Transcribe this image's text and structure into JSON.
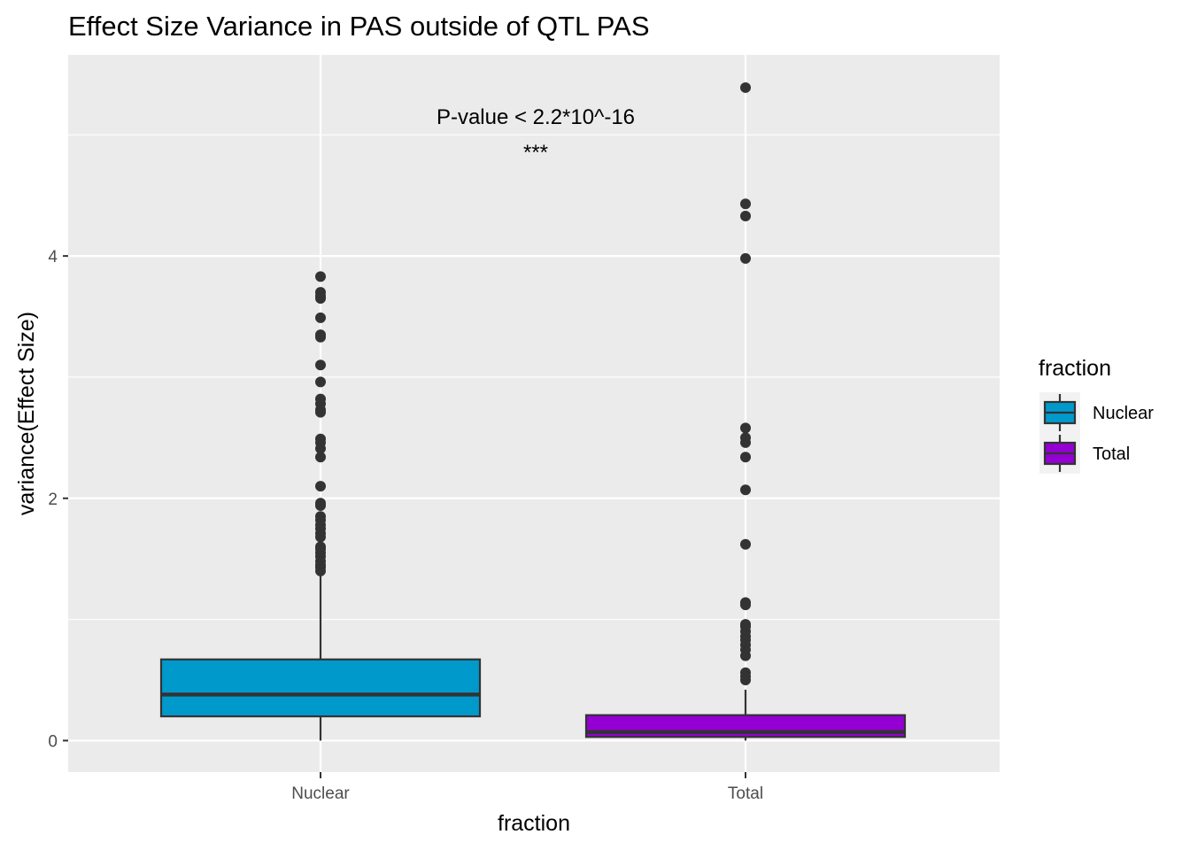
{
  "chart_data": {
    "type": "boxplot",
    "title": "Effect Size Variance in PAS outside of QTL PAS",
    "xlabel": "fraction",
    "ylabel": "variance(Effect Size)",
    "categories": [
      "Nuclear",
      "Total"
    ],
    "ylim": [
      -0.26,
      5.66
    ],
    "yticks": [
      0,
      2,
      4
    ],
    "grid": true,
    "legend": {
      "title": "fraction",
      "position": "right",
      "entries": [
        {
          "label": "Nuclear",
          "color": "#0099cc"
        },
        {
          "label": "Total",
          "color": "#9400d3"
        }
      ]
    },
    "annotations": [
      {
        "text": "P-value < 2.2*10^-16"
      },
      {
        "text": "***"
      }
    ],
    "series": [
      {
        "name": "Nuclear",
        "color": "#0099cc",
        "whisker_low": 0.0,
        "q1": 0.2,
        "median": 0.38,
        "q3": 0.67,
        "whisker_high": 1.37,
        "outliers": [
          3.83,
          3.7,
          3.67,
          3.65,
          3.49,
          3.35,
          3.33,
          3.1,
          2.96,
          2.82,
          2.78,
          2.73,
          2.71,
          2.49,
          2.46,
          2.41,
          2.34,
          2.1,
          1.96,
          1.94,
          1.85,
          1.82,
          1.78,
          1.75,
          1.71,
          1.68,
          1.6,
          1.58,
          1.55,
          1.52,
          1.48,
          1.45,
          1.43,
          1.4
        ]
      },
      {
        "name": "Total",
        "color": "#9400d3",
        "whisker_low": 0.0,
        "q1": 0.03,
        "median": 0.07,
        "q3": 0.21,
        "whisker_high": 0.42,
        "outliers": [
          5.39,
          4.43,
          4.33,
          3.98,
          2.58,
          2.5,
          2.46,
          2.34,
          2.07,
          1.62,
          1.14,
          1.12,
          0.96,
          0.94,
          0.9,
          0.86,
          0.83,
          0.79,
          0.75,
          0.7,
          0.56,
          0.53,
          0.5
        ]
      }
    ]
  }
}
